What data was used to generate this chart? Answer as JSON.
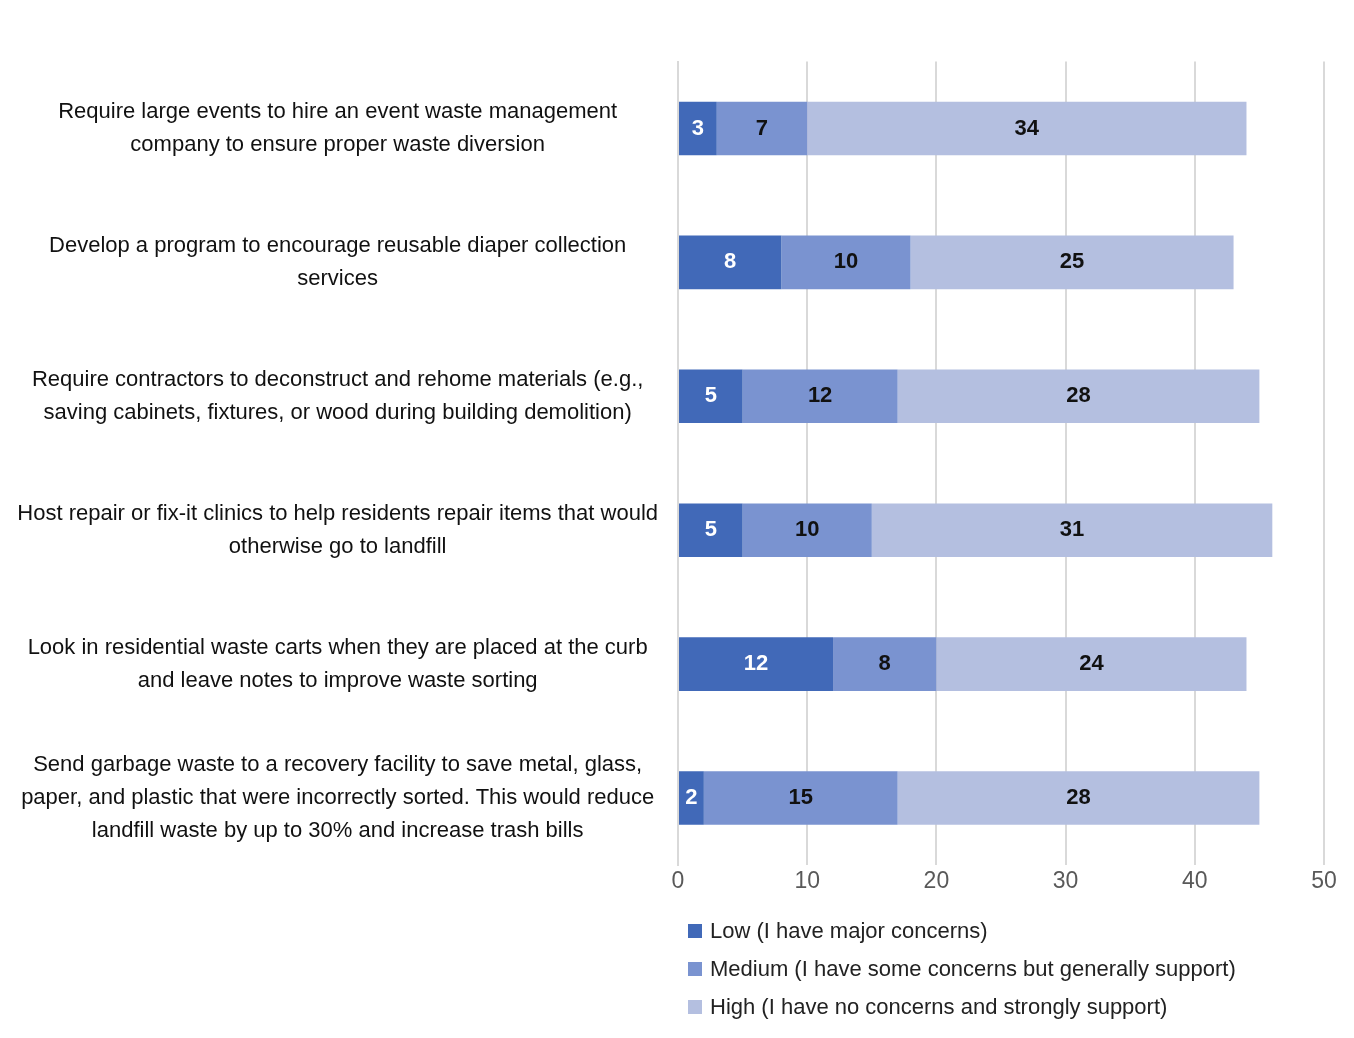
{
  "chart_data": {
    "type": "bar",
    "orientation": "horizontal",
    "stacked": true,
    "categories": [
      "Require large events to hire an event waste management company to ensure proper waste diversion",
      "Develop a program to encourage reusable diaper collection services",
      "Require contractors to deconstruct and rehome materials (e.g., saving cabinets, fixtures, or wood during building demolition)",
      "Host repair or fix-it clinics to help residents repair items that would otherwise go to landfill",
      "Look in residential waste carts when they are placed at the curb and leave notes to improve waste sorting",
      "Send garbage waste to a recovery facility to save metal, glass, paper, and plastic that were incorrectly sorted. This would reduce landfill waste by up to 30% and increase trash bills"
    ],
    "series": [
      {
        "name": "Low (I have major concerns)",
        "color": "#4169b8",
        "values": [
          3,
          8,
          5,
          5,
          12,
          2
        ]
      },
      {
        "name": "Medium (I have some concerns but generally support)",
        "color": "#7a93d0",
        "values": [
          7,
          10,
          12,
          10,
          8,
          15
        ]
      },
      {
        "name": "High (I have no concerns and strongly support)",
        "color": "#b4bfe0",
        "values": [
          34,
          25,
          28,
          31,
          24,
          28
        ]
      }
    ],
    "xlim": [
      0,
      50
    ],
    "xticks": [
      0,
      10,
      20,
      30,
      40,
      50
    ],
    "grid": "x",
    "legend": "bottom",
    "data_labels": true
  }
}
